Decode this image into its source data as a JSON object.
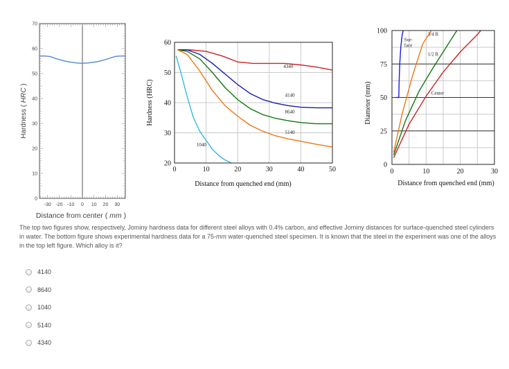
{
  "chart_data": [
    {
      "id": "a",
      "type": "line",
      "title": "",
      "xlabel": "Distance from center (mm)",
      "ylabel": "Hardness (HRC)",
      "xlim": [
        -37,
        37
      ],
      "ylim": [
        0,
        70
      ],
      "x_ticks": [
        -30,
        -20,
        -10,
        0,
        10,
        20,
        30
      ],
      "y_ticks": [
        0,
        10,
        20,
        30,
        40,
        50,
        60,
        70
      ],
      "vline_x": 0,
      "color": "#5b8fd0",
      "series": [
        {
          "x": [
            -37,
            -32,
            -28,
            -24,
            -20,
            -16,
            -12,
            -8,
            -4,
            0,
            4,
            8,
            12,
            16,
            20,
            24,
            28,
            32,
            37
          ],
          "y": [
            57,
            57,
            56.8,
            56.2,
            55.6,
            55.1,
            54.7,
            54.4,
            54.2,
            54.1,
            54.2,
            54.4,
            54.7,
            55.1,
            55.6,
            56.2,
            56.8,
            57,
            57
          ]
        }
      ]
    },
    {
      "id": "b",
      "type": "line",
      "title": "",
      "xlabel": "Distance from quenched end (mm)",
      "ylabel": "Hardness (HRC)",
      "xlim": [
        0,
        50
      ],
      "ylim": [
        20,
        60
      ],
      "x_ticks": [
        0,
        10,
        20,
        30,
        40,
        50
      ],
      "y_ticks": [
        20,
        30,
        40,
        50,
        60
      ],
      "series": [
        {
          "name": "4340",
          "color": "#cc2222",
          "label_pos": [
            34.5,
            51.5
          ],
          "x": [
            1,
            5,
            10,
            15,
            20,
            25,
            30,
            35,
            40,
            45,
            50
          ],
          "y": [
            57.5,
            57.5,
            57,
            55.5,
            53.5,
            53,
            53,
            53,
            52.5,
            51.8,
            50.8
          ]
        },
        {
          "name": "4140",
          "color": "#1a1aaa",
          "label_pos": [
            35,
            42
          ],
          "x": [
            1,
            4,
            8,
            12,
            16,
            20,
            24,
            28,
            32,
            36,
            40,
            45,
            50
          ],
          "y": [
            57.5,
            57.5,
            56,
            53,
            49.5,
            46,
            43,
            41,
            39.8,
            39,
            38.5,
            38.3,
            38.3
          ]
        },
        {
          "name": "8640",
          "color": "#117711",
          "label_pos": [
            35,
            36.4
          ],
          "x": [
            1,
            4,
            8,
            12,
            16,
            20,
            24,
            28,
            32,
            36,
            40,
            45,
            50
          ],
          "y": [
            57.5,
            57,
            54.5,
            50,
            45,
            41,
            38,
            36,
            34.8,
            34,
            33.4,
            33,
            33
          ]
        },
        {
          "name": "5140",
          "color": "#ee7711",
          "label_pos": [
            35,
            29.6
          ],
          "x": [
            1,
            4,
            8,
            12,
            16,
            20,
            24,
            28,
            32,
            36,
            40,
            45,
            50
          ],
          "y": [
            57.5,
            56,
            50.5,
            44,
            39,
            35.5,
            32.5,
            30.5,
            29,
            28,
            27.2,
            26.2,
            25.3
          ]
        },
        {
          "name": "1040",
          "color": "#33bbdd",
          "label_pos": [
            7,
            25.5
          ],
          "x": [
            0.5,
            2,
            4,
            6,
            8,
            10,
            12,
            14,
            16,
            18
          ],
          "y": [
            55.5,
            50,
            42,
            35,
            30.5,
            27.5,
            24.5,
            22.5,
            21,
            20
          ]
        }
      ]
    },
    {
      "id": "c",
      "type": "line",
      "title": "",
      "xlabel": "Distance from quenched end (mm)",
      "ylabel": "Diameter (mm)",
      "xlim": [
        0,
        30
      ],
      "ylim": [
        0,
        100
      ],
      "x_ticks": [
        0,
        10,
        20,
        30
      ],
      "y_ticks": [
        0,
        25,
        50,
        75,
        100
      ],
      "series": [
        {
          "name": "Sur-\nface",
          "color": "#1a1aee",
          "label_pos": [
            3.6,
            92
          ],
          "x": [
            1.3,
            2,
            2.1,
            2.3,
            2.6,
            3,
            3.3
          ],
          "y": [
            50,
            50,
            62,
            76,
            88,
            97,
            100
          ]
        },
        {
          "name": "3/4 R",
          "color": "#ee7711",
          "label_pos": [
            10.5,
            96
          ],
          "x": [
            0.5,
            3,
            6,
            9,
            11.5
          ],
          "y": [
            9,
            38,
            66,
            90,
            100
          ]
        },
        {
          "name": "1/2 R",
          "color": "#117711",
          "label_pos": [
            10.5,
            81
          ],
          "x": [
            0.5,
            4,
            8,
            12,
            16,
            19
          ],
          "y": [
            7,
            33,
            55,
            72,
            88,
            100
          ]
        },
        {
          "name": "Center",
          "color": "#cc2222",
          "label_pos": [
            11.5,
            52
          ],
          "x": [
            0.5,
            5,
            10,
            15,
            20,
            25,
            26
          ],
          "y": [
            5,
            30,
            51,
            69,
            84,
            97,
            100
          ]
        }
      ]
    }
  ],
  "question": {
    "part1": "The top two figures show, respectively, Jominy hardness data for different steel alloys with 0.4% carbon, and effective Jominy distances for surface-quenched steel cylinders in water. The bottom figure shows experimental hardness data for a 75-",
    "unit": "mm",
    "part2": " water-quenched steel specimen. It is known that the steel in the experiment was one of the alloys in the top left figure. Which alloy is it?"
  },
  "options": [
    "4140",
    "8640",
    "1040",
    "5140",
    "4340"
  ]
}
